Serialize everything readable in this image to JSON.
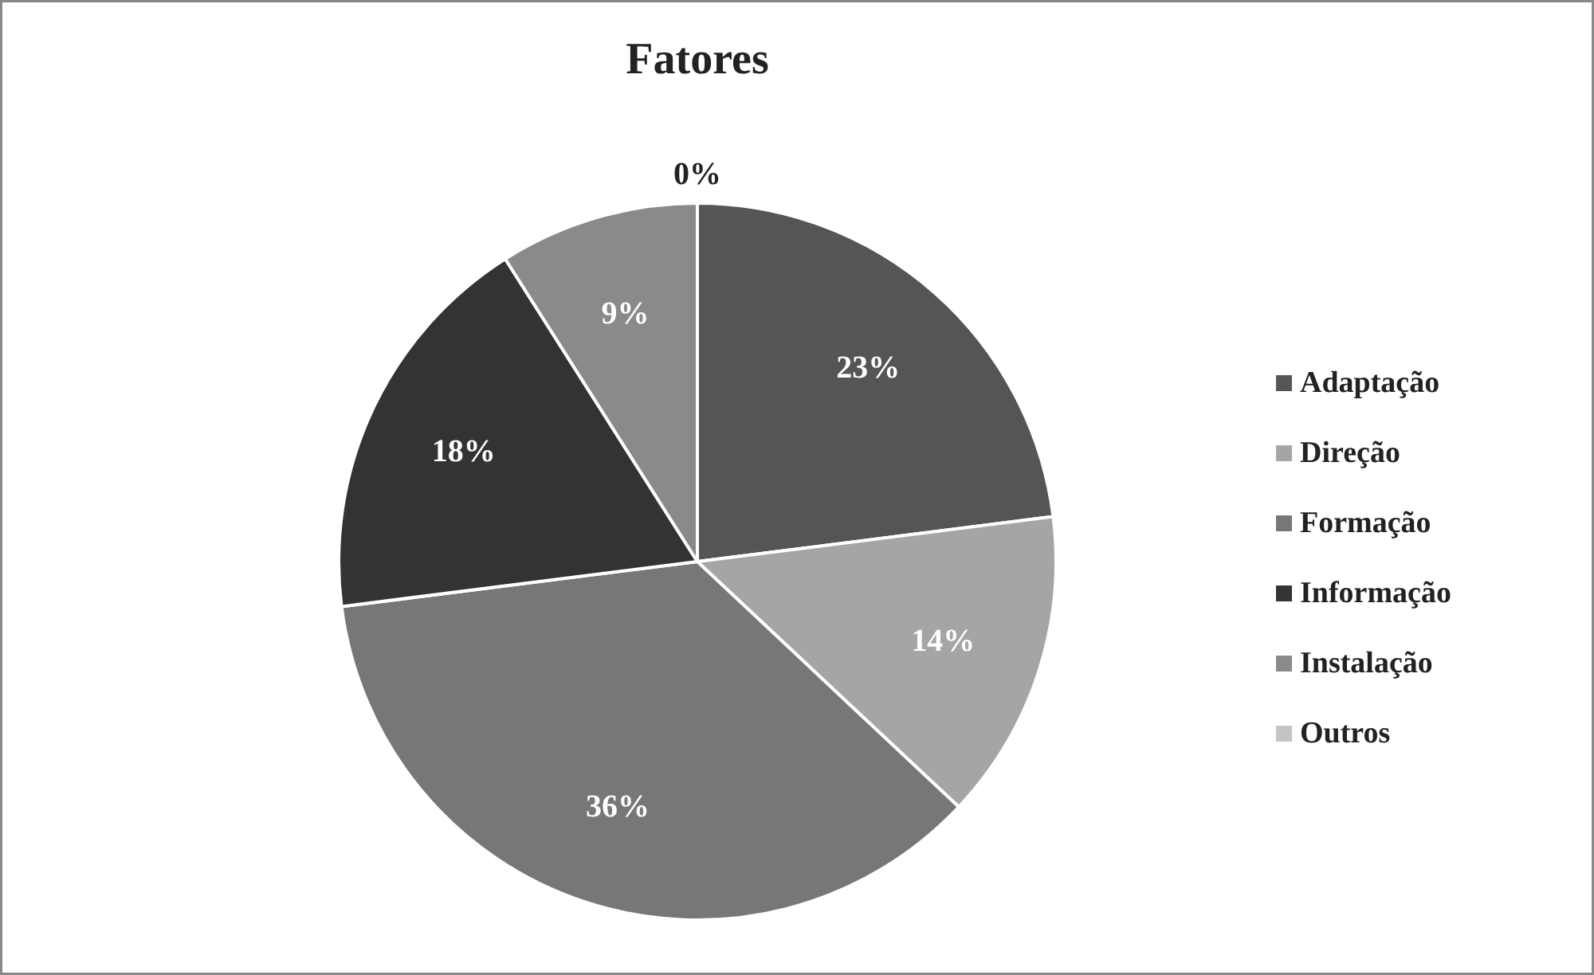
{
  "chart_data": {
    "type": "pie",
    "title": "Fatores",
    "categories": [
      "Adaptação",
      "Direção",
      "Formação",
      "Informação",
      "Instalação",
      "Outros"
    ],
    "values": [
      23,
      14,
      36,
      18,
      9,
      0
    ],
    "colors": [
      "#555555",
      "#a5a5a5",
      "#777777",
      "#333333",
      "#8a8a8a",
      "#c4c4c4"
    ],
    "value_labels": [
      "23%",
      "14%",
      "36%",
      "18%",
      "9%",
      "0%"
    ],
    "legend": "right"
  }
}
